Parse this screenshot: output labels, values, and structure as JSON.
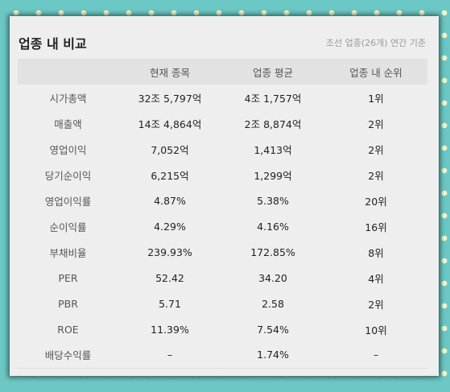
{
  "header": {
    "title": "업종 내 비교",
    "subtitle": "조선 업종(26개) 연간 기준"
  },
  "table": {
    "columns": [
      "",
      "현재 종목",
      "업종 평균",
      "업종 내 순위"
    ],
    "rows": [
      {
        "label": "시가총액",
        "current": "32조 5,797억",
        "average": "4조 1,757억",
        "rank": "1위"
      },
      {
        "label": "매출액",
        "current": "14조 4,864억",
        "average": "2조 8,874억",
        "rank": "2위"
      },
      {
        "label": "영업이익",
        "current": "7,052억",
        "average": "1,413억",
        "rank": "2위"
      },
      {
        "label": "당기순이익",
        "current": "6,215억",
        "average": "1,299억",
        "rank": "2위"
      },
      {
        "label": "영업이익률",
        "current": "4.87%",
        "average": "5.38%",
        "rank": "20위"
      },
      {
        "label": "순이익률",
        "current": "4.29%",
        "average": "4.16%",
        "rank": "16위"
      },
      {
        "label": "부채비율",
        "current": "239.93%",
        "average": "172.85%",
        "rank": "8위"
      },
      {
        "label": "PER",
        "current": "52.42",
        "average": "34.20",
        "rank": "4위"
      },
      {
        "label": "PBR",
        "current": "5.71",
        "average": "2.58",
        "rank": "2위"
      },
      {
        "label": "ROE",
        "current": "11.39%",
        "average": "7.54%",
        "rank": "10위"
      },
      {
        "label": "배당수익률",
        "current": "–",
        "average": "1.74%",
        "rank": "–"
      }
    ]
  },
  "colors": {
    "background": "#6cc8c4",
    "dots": "#fbf6c8",
    "panel": "#eeeeee",
    "table_header": "#e2e2e2"
  }
}
